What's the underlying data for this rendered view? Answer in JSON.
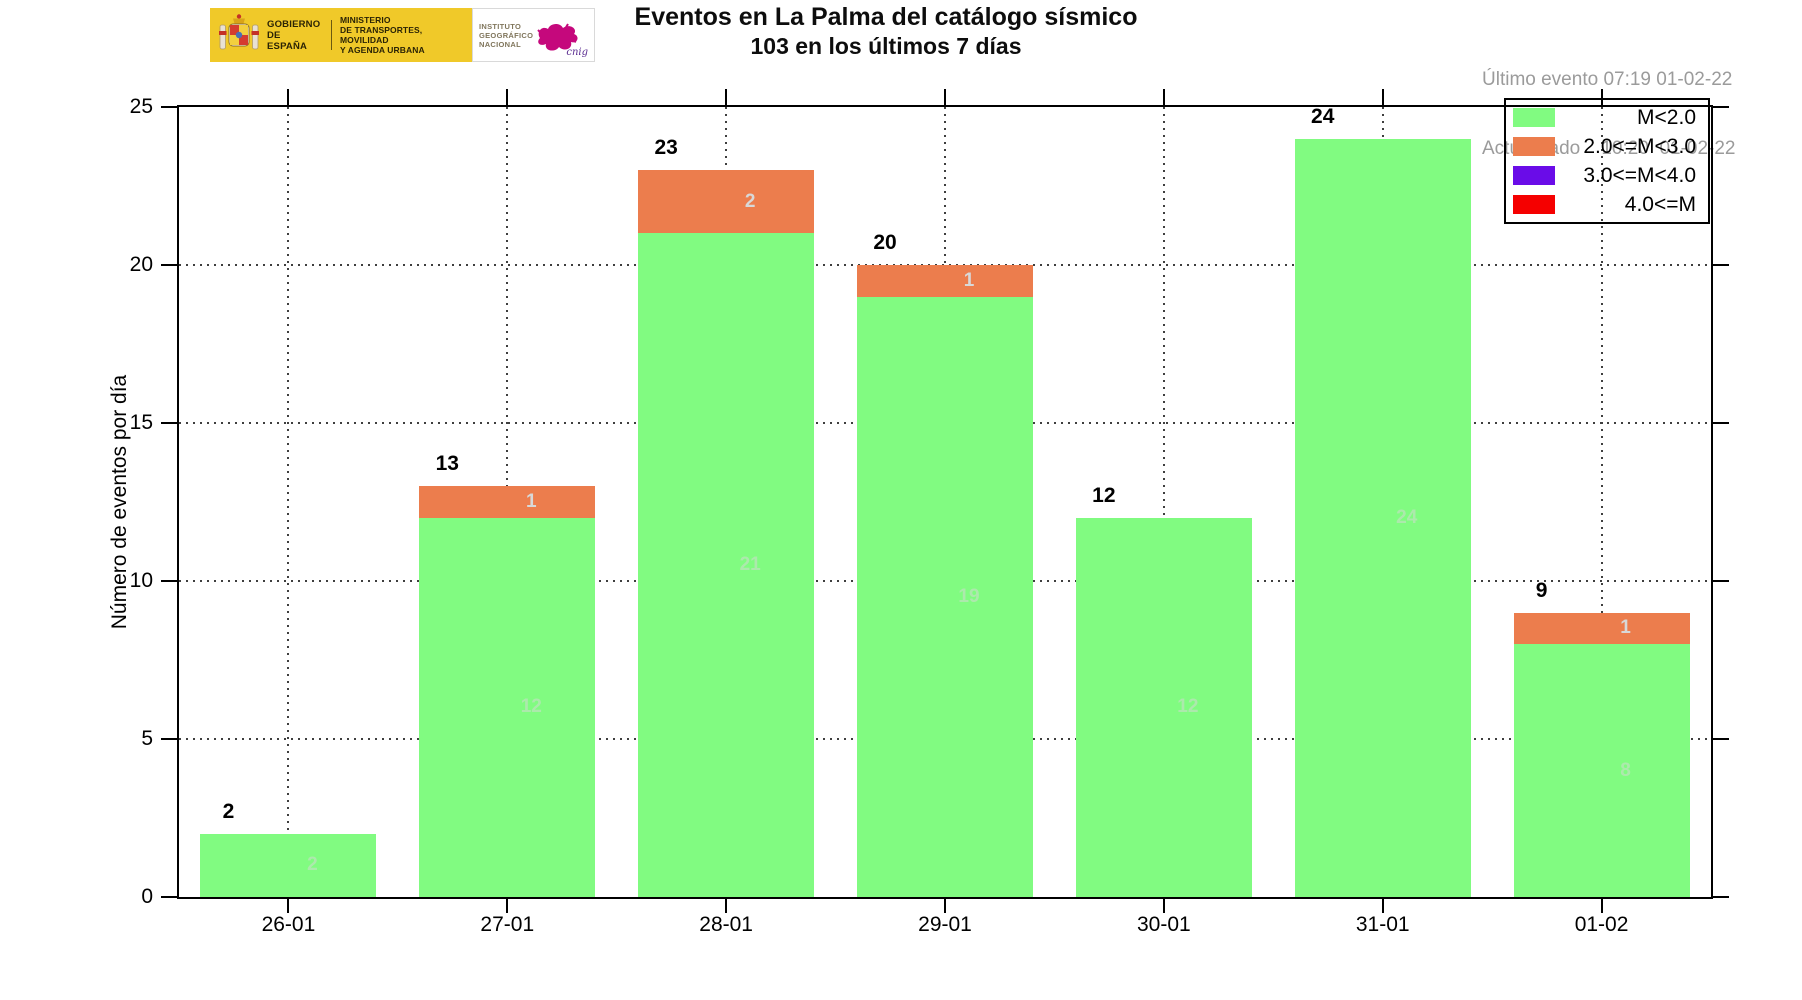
{
  "header": {
    "logo": {
      "gobierno": [
        "GOBIERNO",
        "DE ESPAÑA"
      ],
      "ministerio": [
        "MINISTERIO",
        "DE TRANSPORTES, MOVILIDAD",
        "Y AGENDA URBANA"
      ],
      "instituto": [
        "INSTITUTO",
        "GEOGRÁFICO",
        "NACIONAL"
      ],
      "cnig_label": "cnig"
    },
    "title_line1": "Eventos en La Palma del catálogo sísmico",
    "title_line2": "103 en los últimos 7 días",
    "last_event_label": "Último evento 07:19 01-02-22",
    "updated_label": "Actualizado    10:20  01-02-22"
  },
  "chart_data": {
    "type": "bar",
    "stacked": true,
    "title": "Eventos en La Palma del catálogo sísmico",
    "subtitle": "103 en los últimos 7 días",
    "ylabel": "Número de eventos por día",
    "categories": [
      "26-01",
      "27-01",
      "28-01",
      "29-01",
      "30-01",
      "31-01",
      "01-02"
    ],
    "series": [
      {
        "name": "M<2.0",
        "color": "#81fb81",
        "values": [
          2,
          12,
          21,
          19,
          12,
          24,
          8
        ]
      },
      {
        "name": "2.0<=M<3.0",
        "color": "#ec7d4d",
        "values": [
          0,
          1,
          2,
          1,
          0,
          0,
          1
        ]
      },
      {
        "name": "3.0<=M<4.0",
        "color": "#6a0ce8",
        "values": [
          0,
          0,
          0,
          0,
          0,
          0,
          0
        ]
      },
      {
        "name": "4.0<=M",
        "color": "#f50000",
        "values": [
          0,
          0,
          0,
          0,
          0,
          0,
          0
        ]
      }
    ],
    "totals": [
      2,
      13,
      23,
      20,
      12,
      24,
      9
    ],
    "ylim": [
      0,
      25
    ],
    "yticks": [
      0,
      5,
      10,
      15,
      20,
      25
    ],
    "grid": true,
    "legend_position": "top-right",
    "segment_label_color": "#d8d8d8",
    "total_label_color": "#000000"
  }
}
